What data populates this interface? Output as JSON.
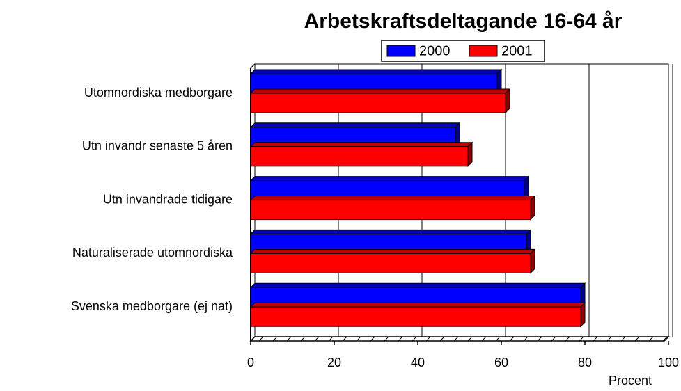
{
  "chart_data": {
    "type": "bar",
    "orientation": "horizontal",
    "title": "Arbetskraftsdeltagande 16-64 år",
    "x_label": "Procent",
    "categories": [
      "Utomnordiska medborgare",
      "Utn invandr senaste 5 åren",
      "Utn invandrade tidigare",
      "Naturaliserade utomnordiska",
      "Svenska medborgare (ej nat)"
    ],
    "series": [
      {
        "name": "2000",
        "color": "#0000ff",
        "values": [
          59,
          49,
          65.5,
          66,
          79
        ]
      },
      {
        "name": "2001",
        "color": "#ff0000",
        "values": [
          61,
          52,
          67,
          67,
          79
        ]
      }
    ],
    "xlim": [
      0,
      100
    ],
    "xticks": [
      0,
      20,
      40,
      60,
      80,
      100
    ],
    "grid": true
  }
}
